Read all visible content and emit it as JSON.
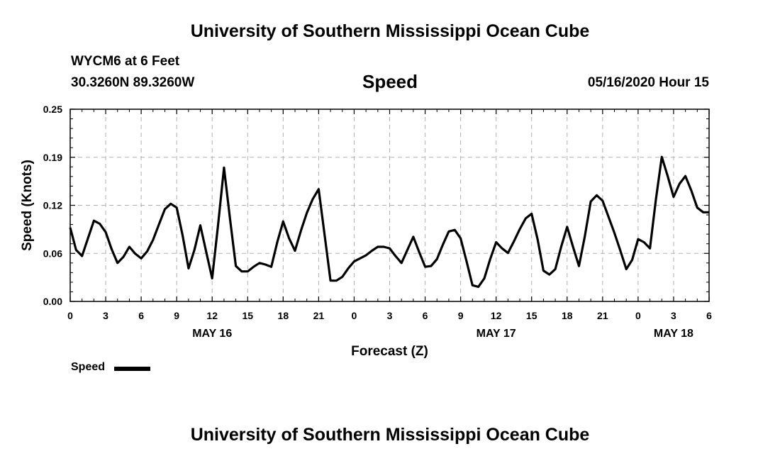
{
  "header": {
    "title": "University of Southern Mississippi Ocean Cube",
    "station": "WYCM6 at 6 Feet",
    "coordinates": "30.3260N 89.3260W",
    "parameter": "Speed",
    "date_hour": "05/16/2020 Hour 15"
  },
  "footer": {
    "title": "University of Southern Mississippi Ocean Cube"
  },
  "legend": {
    "label": "Speed",
    "color": "#000000"
  },
  "chart_data": {
    "type": "line",
    "title": "Speed",
    "xlabel": "Forecast (Z)",
    "ylabel": "Speed (Knots)",
    "ylim": [
      0.0,
      0.25
    ],
    "yticks": [
      "0.00",
      "0.06",
      "0.12",
      "0.19",
      "0.25"
    ],
    "ytick_values": [
      0.0,
      0.0625,
      0.125,
      0.1875,
      0.25
    ],
    "xlim_hours": [
      0,
      54
    ],
    "xticks": [
      {
        "hour": 0,
        "label": "0"
      },
      {
        "hour": 3,
        "label": "3"
      },
      {
        "hour": 6,
        "label": "6"
      },
      {
        "hour": 9,
        "label": "9"
      },
      {
        "hour": 12,
        "label": "12"
      },
      {
        "hour": 15,
        "label": "15"
      },
      {
        "hour": 18,
        "label": "18"
      },
      {
        "hour": 21,
        "label": "21"
      },
      {
        "hour": 24,
        "label": "0"
      },
      {
        "hour": 27,
        "label": "3"
      },
      {
        "hour": 30,
        "label": "6"
      },
      {
        "hour": 33,
        "label": "9"
      },
      {
        "hour": 36,
        "label": "12"
      },
      {
        "hour": 39,
        "label": "15"
      },
      {
        "hour": 42,
        "label": "18"
      },
      {
        "hour": 45,
        "label": "21"
      },
      {
        "hour": 48,
        "label": "0"
      },
      {
        "hour": 51,
        "label": "3"
      },
      {
        "hour": 54,
        "label": "6"
      }
    ],
    "date_labels": [
      {
        "hour": 12,
        "label": "MAY 16"
      },
      {
        "hour": 36,
        "label": "MAY 17"
      },
      {
        "hour": 51,
        "label": "MAY 18"
      }
    ],
    "grid": true,
    "legend_position": "bottom-left",
    "series": [
      {
        "name": "Speed",
        "color": "#000000",
        "x_start_hour": 0,
        "x_step_hours": 0.5,
        "values": [
          0.096,
          0.067,
          0.059,
          0.082,
          0.105,
          0.101,
          0.09,
          0.068,
          0.05,
          0.058,
          0.071,
          0.062,
          0.056,
          0.065,
          0.08,
          0.1,
          0.12,
          0.127,
          0.122,
          0.086,
          0.043,
          0.067,
          0.099,
          0.064,
          0.03,
          0.1,
          0.174,
          0.108,
          0.046,
          0.039,
          0.039,
          0.045,
          0.05,
          0.048,
          0.045,
          0.077,
          0.104,
          0.082,
          0.066,
          0.092,
          0.115,
          0.133,
          0.146,
          0.087,
          0.027,
          0.027,
          0.032,
          0.043,
          0.052,
          0.056,
          0.06,
          0.066,
          0.071,
          0.071,
          0.069,
          0.059,
          0.05,
          0.067,
          0.084,
          0.064,
          0.045,
          0.046,
          0.055,
          0.074,
          0.091,
          0.093,
          0.082,
          0.052,
          0.021,
          0.019,
          0.03,
          0.055,
          0.077,
          0.069,
          0.063,
          0.078,
          0.094,
          0.108,
          0.114,
          0.081,
          0.04,
          0.035,
          0.042,
          0.071,
          0.097,
          0.071,
          0.046,
          0.085,
          0.13,
          0.138,
          0.131,
          0.11,
          0.089,
          0.066,
          0.042,
          0.054,
          0.081,
          0.077,
          0.069,
          0.132,
          0.188,
          0.163,
          0.136,
          0.153,
          0.163,
          0.144,
          0.122,
          0.116,
          0.116
        ]
      }
    ]
  }
}
